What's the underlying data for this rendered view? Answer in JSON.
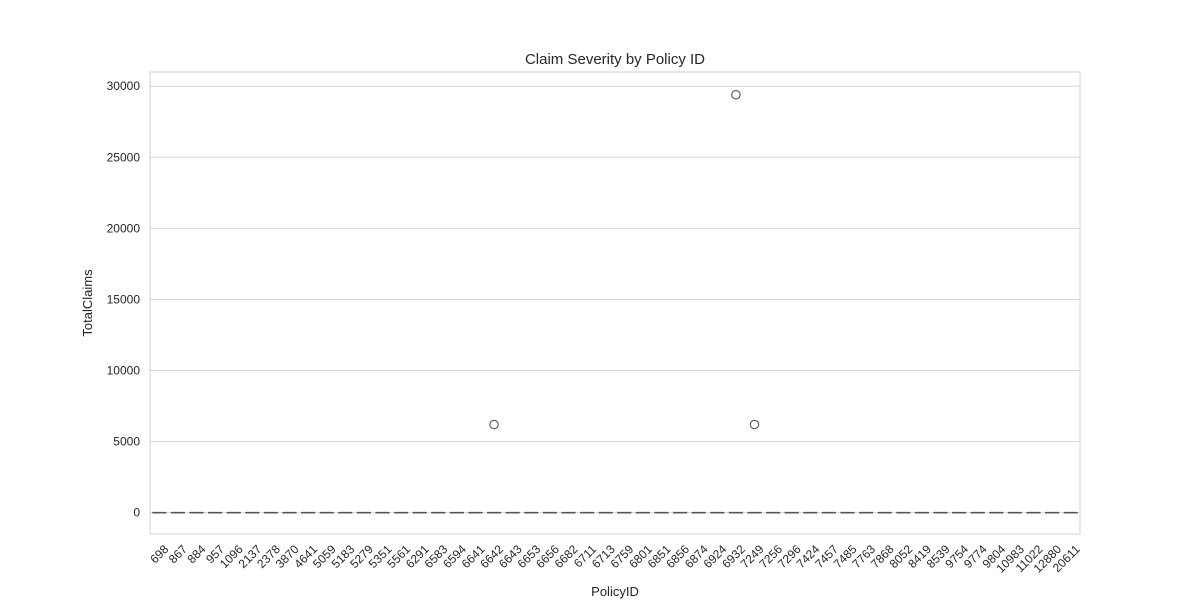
{
  "chart_data": {
    "type": "box",
    "title": "Claim Severity by Policy ID",
    "xlabel": "PolicyID",
    "ylabel": "TotalClaims",
    "ylim": [
      -1500,
      31000
    ],
    "yticks": [
      0,
      5000,
      10000,
      15000,
      20000,
      25000,
      30000
    ],
    "grid": true,
    "categories": [
      "698",
      "867",
      "884",
      "957",
      "1096",
      "2137",
      "2378",
      "3870",
      "4641",
      "5059",
      "5183",
      "5279",
      "5351",
      "5561",
      "6291",
      "6583",
      "6594",
      "6641",
      "6642",
      "6643",
      "6653",
      "6656",
      "6682",
      "6711",
      "6713",
      "6759",
      "6801",
      "6851",
      "6856",
      "6874",
      "6924",
      "6932",
      "7249",
      "7256",
      "7296",
      "7424",
      "7457",
      "7485",
      "7763",
      "7868",
      "8052",
      "8419",
      "8539",
      "9754",
      "9774",
      "9804",
      "10983",
      "11022",
      "12880",
      "20611"
    ],
    "box_values_note": "All boxes collapsed at 0",
    "box_center": 0,
    "outliers": [
      {
        "category": "6642",
        "value": 6200
      },
      {
        "category": "7249",
        "value": 6200
      },
      {
        "category": "6932",
        "value": 29400
      }
    ],
    "colors": {
      "box": "#555555",
      "grid": "#d6d6d6",
      "text": "#262626"
    }
  }
}
